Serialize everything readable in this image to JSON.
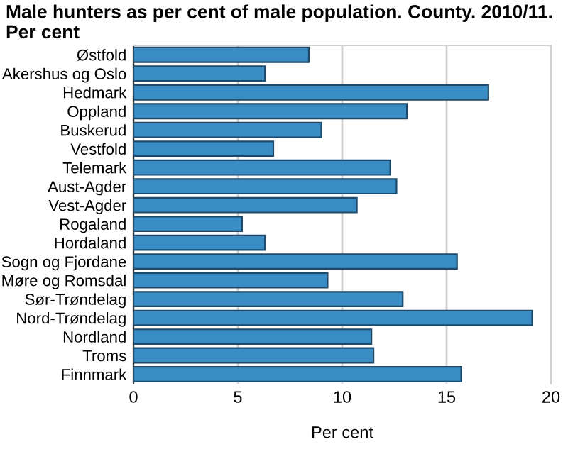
{
  "chart_data": {
    "type": "bar",
    "orientation": "horizontal",
    "title": "Male hunters as per cent of male population. County. 2010/11.\nPer cent",
    "xlabel": "Per cent",
    "categories": [
      "Østfold",
      "Akershus og Oslo",
      "Hedmark",
      "Oppland",
      "Buskerud",
      "Vestfold",
      "Telemark",
      "Aust-Agder",
      "Vest-Agder",
      "Rogaland",
      "Hordaland",
      "Sogn og Fjordane",
      "Møre og Romsdal",
      "Sør-Trøndelag",
      "Nord-Trøndelag",
      "Nordland",
      "Troms",
      "Finnmark"
    ],
    "values": [
      8.4,
      6.3,
      17.0,
      13.1,
      9.0,
      6.7,
      12.3,
      12.6,
      10.7,
      5.2,
      6.3,
      15.5,
      9.3,
      12.9,
      19.1,
      11.4,
      11.5,
      15.7
    ],
    "color": "#3a8cc4",
    "xlim": [
      0,
      20
    ],
    "xticks": [
      0,
      5,
      10,
      15,
      20
    ],
    "grid": "x"
  }
}
